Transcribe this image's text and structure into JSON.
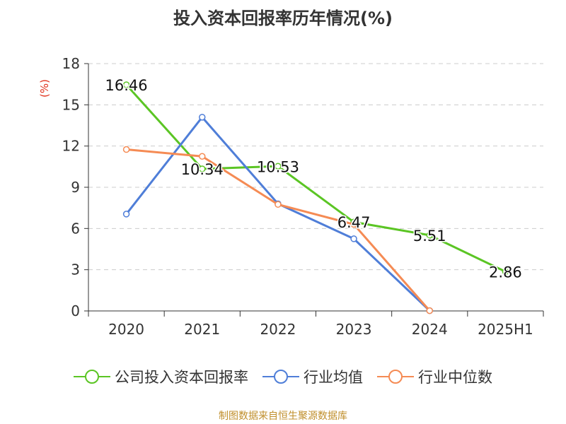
{
  "chart_data": {
    "type": "line",
    "title": "投入资本回报率历年情况(%)",
    "ylabel": "(%)",
    "categories": [
      "2020",
      "2021",
      "2022",
      "2023",
      "2024",
      "2025H1"
    ],
    "ylim": [
      0,
      18
    ],
    "yticks": [
      0,
      3,
      6,
      9,
      12,
      15,
      18
    ],
    "grid": true,
    "legend_position": "bottom",
    "series": [
      {
        "name": "公司投入资本回报率",
        "color": "#5bc524",
        "values": [
          16.46,
          10.34,
          10.53,
          6.47,
          5.51,
          2.86
        ],
        "labels": [
          "16.46",
          "10.34",
          "10.53",
          "6.47",
          "5.51",
          "2.86"
        ]
      },
      {
        "name": "行业均值",
        "color": "#4f7ed8",
        "values": [
          7.05,
          14.1,
          7.8,
          5.25,
          0.02,
          null
        ]
      },
      {
        "name": "行业中位数",
        "color": "#f58b54",
        "values": [
          11.75,
          11.25,
          7.75,
          6.3,
          0.02,
          null
        ]
      }
    ]
  },
  "source": "制图数据来自恒生聚源数据库"
}
